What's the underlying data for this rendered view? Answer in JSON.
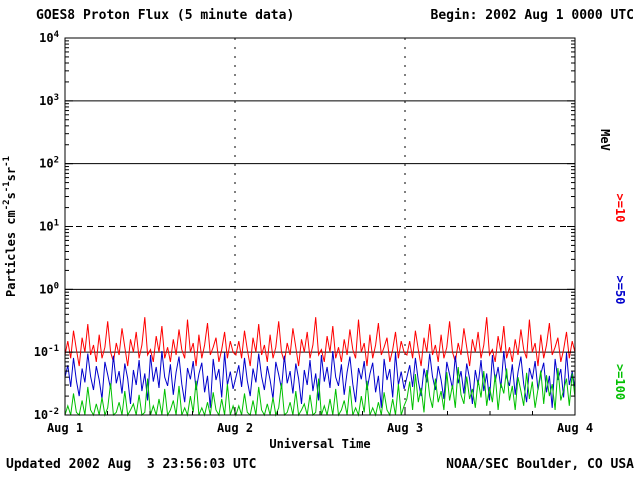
{
  "header": {
    "title": "GOES8 Proton Flux (5 minute data)",
    "begin_label": "Begin: 2002 Aug 1 0000 UTC"
  },
  "footer": {
    "updated": "Updated 2002 Aug  3 23:56:03 UTC",
    "source": "NOAA/SEC Boulder, CO USA"
  },
  "chart_data": {
    "type": "line",
    "title": "GOES8 Proton Flux (5 minute data)",
    "xlabel": "Universal Time",
    "ylabel": "Particles cm-2 s-1 sr-1",
    "ylabel_parts": [
      {
        "text": "Particles cm",
        "sup": false
      },
      {
        "text": "-2",
        "sup": true
      },
      {
        "text": "s",
        "sup": false
      },
      {
        "text": "-1",
        "sup": true
      },
      {
        "text": "sr",
        "sup": false
      },
      {
        "text": "-1",
        "sup": true
      }
    ],
    "y_scale": "log",
    "y_tick_exponents": [
      -2,
      -1,
      0,
      1,
      2,
      3,
      4
    ],
    "ylim_exponents": [
      -2,
      4
    ],
    "x_span_days": 3,
    "x_tick_labels": [
      "Aug 1",
      "Aug 2",
      "Aug 3",
      "Aug 4"
    ],
    "grid": {
      "h_solid_exponents": [
        -1,
        0,
        2,
        3
      ],
      "h_dashed_exponents": [
        1
      ],
      "v_dashed_days": [
        1,
        2
      ]
    },
    "right_axis_labels": [
      {
        "key": "mev-unit",
        "text": "MeV",
        "color": "#000000"
      },
      {
        "key": "gte-10",
        "text": ">=10",
        "color": "#ff0000"
      },
      {
        "key": "gte-50",
        "text": ">=50",
        "color": "#0000cc"
      },
      {
        "key": "gte-100",
        "text": ">=100",
        "color": "#00c000"
      }
    ],
    "series": [
      {
        "key": "gte-10-mev",
        "name": ">=10 MeV",
        "color": "#ff0000",
        "baseline": 0.1,
        "values": [
          0.09,
          0.15,
          0.08,
          0.22,
          0.11,
          0.06,
          0.17,
          0.1,
          0.28,
          0.09,
          0.13,
          0.07,
          0.19,
          0.08,
          0.12,
          0.31,
          0.1,
          0.07,
          0.14,
          0.09,
          0.24,
          0.12,
          0.06,
          0.16,
          0.1,
          0.21,
          0.08,
          0.13,
          0.36,
          0.09,
          0.11,
          0.07,
          0.18,
          0.1,
          0.26,
          0.08,
          0.12,
          0.07,
          0.16,
          0.09,
          0.23,
          0.11,
          0.08,
          0.33,
          0.1,
          0.14,
          0.06,
          0.19,
          0.08,
          0.13,
          0.29,
          0.09,
          0.12,
          0.17,
          0.07,
          0.11,
          0.21,
          0.08,
          0.15,
          0.1,
          0.09,
          0.15,
          0.08,
          0.22,
          0.11,
          0.06,
          0.17,
          0.1,
          0.28,
          0.09,
          0.13,
          0.07,
          0.19,
          0.08,
          0.12,
          0.31,
          0.1,
          0.07,
          0.14,
          0.09,
          0.24,
          0.12,
          0.06,
          0.16,
          0.1,
          0.21,
          0.08,
          0.13,
          0.36,
          0.09,
          0.11,
          0.07,
          0.18,
          0.1,
          0.26,
          0.08,
          0.12,
          0.07,
          0.16,
          0.09,
          0.23,
          0.11,
          0.08,
          0.33,
          0.1,
          0.14,
          0.06,
          0.19,
          0.08,
          0.13,
          0.29,
          0.09,
          0.12,
          0.17,
          0.07,
          0.11,
          0.21,
          0.08,
          0.15,
          0.1,
          0.09,
          0.15,
          0.08,
          0.22,
          0.11,
          0.06,
          0.17,
          0.1,
          0.28,
          0.09,
          0.13,
          0.07,
          0.19,
          0.08,
          0.12,
          0.31,
          0.1,
          0.07,
          0.14,
          0.09,
          0.24,
          0.12,
          0.06,
          0.16,
          0.1,
          0.21,
          0.08,
          0.13,
          0.36,
          0.09,
          0.11,
          0.07,
          0.18,
          0.1,
          0.26,
          0.08,
          0.12,
          0.07,
          0.16,
          0.09,
          0.23,
          0.11,
          0.08,
          0.33,
          0.1,
          0.14,
          0.06,
          0.19,
          0.08,
          0.13,
          0.29,
          0.09,
          0.12,
          0.17,
          0.07,
          0.11,
          0.21,
          0.08,
          0.15,
          0.1
        ]
      },
      {
        "key": "gte-50-mev",
        "name": ">=50 MeV",
        "color": "#0000cc",
        "baseline": 0.04,
        "values": [
          0.04,
          0.062,
          0.028,
          0.081,
          0.035,
          0.02,
          0.055,
          0.033,
          0.095,
          0.041,
          0.025,
          0.06,
          0.036,
          0.018,
          0.07,
          0.044,
          0.026,
          0.088,
          0.032,
          0.05,
          0.022,
          0.066,
          0.038,
          0.015,
          0.052,
          0.03,
          0.075,
          0.024,
          0.046,
          0.017,
          0.09,
          0.034,
          0.058,
          0.027,
          0.104,
          0.04,
          0.029,
          0.064,
          0.021,
          0.048,
          0.085,
          0.031,
          0.016,
          0.056,
          0.037,
          0.072,
          0.025,
          0.045,
          0.068,
          0.023,
          0.042,
          0.013,
          0.078,
          0.036,
          0.054,
          0.019,
          0.098,
          0.03,
          0.049,
          0.026,
          0.04,
          0.062,
          0.028,
          0.081,
          0.035,
          0.02,
          0.055,
          0.033,
          0.095,
          0.041,
          0.025,
          0.06,
          0.036,
          0.018,
          0.07,
          0.044,
          0.026,
          0.088,
          0.032,
          0.05,
          0.022,
          0.066,
          0.038,
          0.015,
          0.052,
          0.03,
          0.075,
          0.024,
          0.046,
          0.017,
          0.09,
          0.034,
          0.058,
          0.027,
          0.104,
          0.04,
          0.029,
          0.064,
          0.021,
          0.048,
          0.085,
          0.031,
          0.016,
          0.056,
          0.037,
          0.072,
          0.025,
          0.045,
          0.068,
          0.023,
          0.042,
          0.013,
          0.078,
          0.036,
          0.054,
          0.019,
          0.098,
          0.03,
          0.049,
          0.026,
          0.04,
          0.062,
          0.028,
          0.081,
          0.035,
          0.02,
          0.055,
          0.033,
          0.095,
          0.041,
          0.025,
          0.06,
          0.036,
          0.018,
          0.07,
          0.044,
          0.026,
          0.088,
          0.032,
          0.05,
          0.022,
          0.066,
          0.038,
          0.015,
          0.052,
          0.03,
          0.075,
          0.024,
          0.046,
          0.017,
          0.09,
          0.034,
          0.058,
          0.027,
          0.104,
          0.04,
          0.029,
          0.064,
          0.021,
          0.048,
          0.085,
          0.031,
          0.016,
          0.056,
          0.037,
          0.072,
          0.025,
          0.045,
          0.068,
          0.023,
          0.042,
          0.013,
          0.078,
          0.036,
          0.054,
          0.019,
          0.098,
          0.03,
          0.049,
          0.026
        ]
      },
      {
        "key": "gte-100-mev",
        "name": ">=100 MeV",
        "color": "#00c000",
        "baseline": 0.012,
        "values": [
          0.01,
          0.014,
          0.01,
          0.022,
          0.011,
          0.01,
          0.017,
          0.01,
          0.028,
          0.012,
          0.01,
          0.015,
          0.01,
          0.019,
          0.01,
          0.013,
          0.032,
          0.01,
          0.011,
          0.016,
          0.01,
          0.024,
          0.01,
          0.012,
          0.015,
          0.01,
          0.021,
          0.01,
          0.011,
          0.038,
          0.01,
          0.014,
          0.01,
          0.018,
          0.01,
          0.026,
          0.01,
          0.012,
          0.017,
          0.01,
          0.029,
          0.01,
          0.013,
          0.01,
          0.02,
          0.011,
          0.035,
          0.01,
          0.013,
          0.01,
          0.016,
          0.01,
          0.023,
          0.012,
          0.01,
          0.018,
          0.01,
          0.031,
          0.01,
          0.014,
          0.01,
          0.014,
          0.01,
          0.022,
          0.011,
          0.01,
          0.017,
          0.01,
          0.028,
          0.012,
          0.01,
          0.015,
          0.01,
          0.019,
          0.01,
          0.013,
          0.032,
          0.01,
          0.011,
          0.016,
          0.01,
          0.024,
          0.01,
          0.012,
          0.015,
          0.01,
          0.021,
          0.01,
          0.011,
          0.038,
          0.01,
          0.014,
          0.01,
          0.018,
          0.01,
          0.026,
          0.01,
          0.012,
          0.017,
          0.01,
          0.029,
          0.01,
          0.013,
          0.01,
          0.02,
          0.011,
          0.035,
          0.01,
          0.013,
          0.01,
          0.016,
          0.01,
          0.023,
          0.012,
          0.01,
          0.018,
          0.01,
          0.031,
          0.01,
          0.014,
          0.018,
          0.034,
          0.012,
          0.045,
          0.016,
          0.027,
          0.011,
          0.052,
          0.02,
          0.013,
          0.038,
          0.016,
          0.024,
          0.012,
          0.048,
          0.017,
          0.03,
          0.013,
          0.058,
          0.021,
          0.015,
          0.041,
          0.018,
          0.026,
          0.013,
          0.036,
          0.019,
          0.05,
          0.014,
          0.028,
          0.016,
          0.044,
          0.012,
          0.032,
          0.022,
          0.055,
          0.017,
          0.029,
          0.012,
          0.04,
          0.024,
          0.014,
          0.047,
          0.018,
          0.034,
          0.013,
          0.026,
          0.051,
          0.015,
          0.043,
          0.02,
          0.031,
          0.012,
          0.056,
          0.017,
          0.025,
          0.038,
          0.014,
          0.046,
          0.019
        ]
      }
    ]
  }
}
